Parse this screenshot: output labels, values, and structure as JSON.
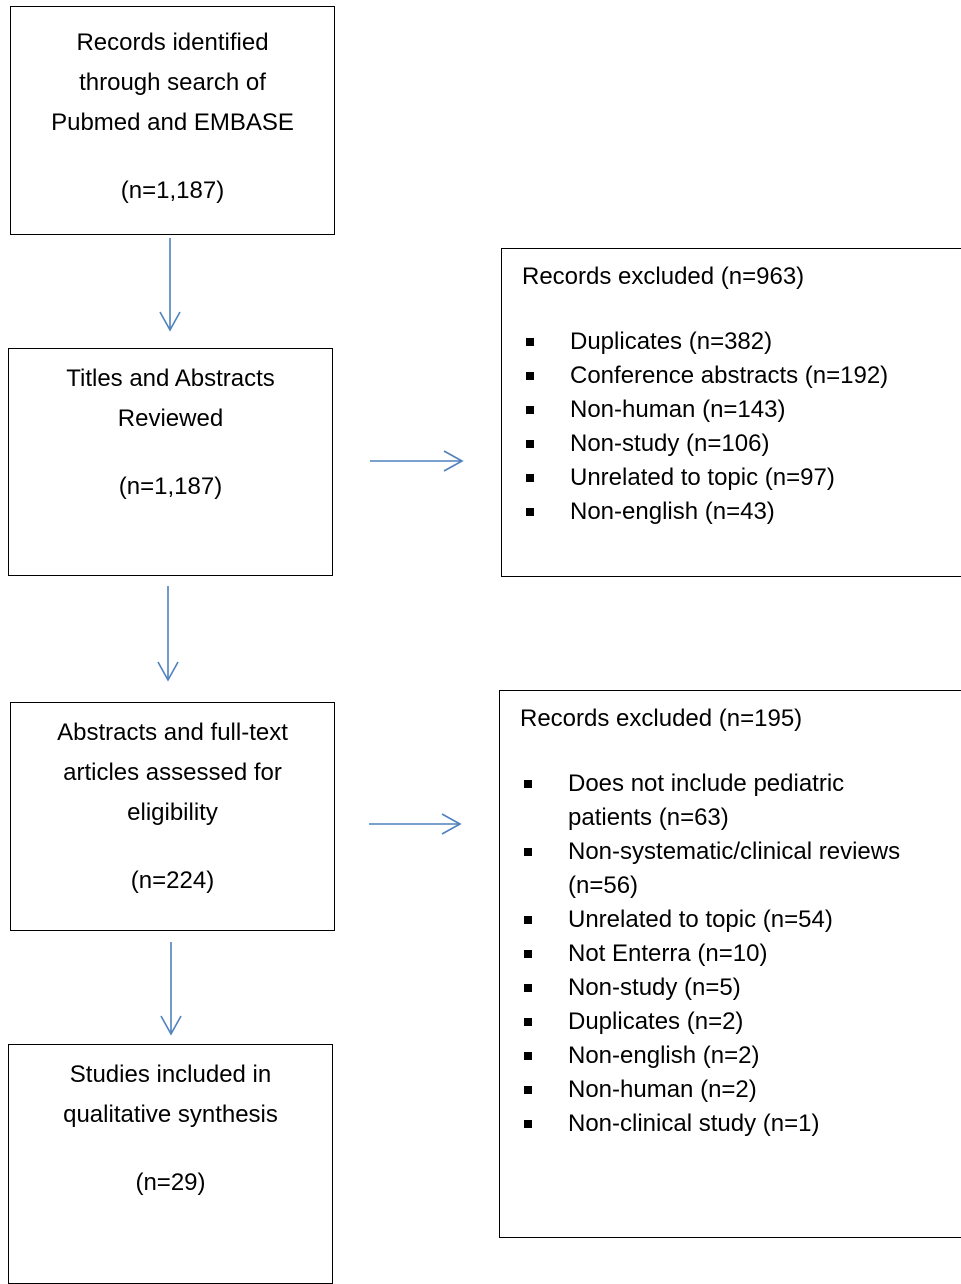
{
  "boxes": {
    "records_identified": {
      "lines": [
        "Records identified",
        "through search of",
        "Pubmed and EMBASE"
      ],
      "count": "(n=1,187)"
    },
    "titles_reviewed": {
      "lines": [
        "Titles and Abstracts",
        "Reviewed"
      ],
      "count": "(n=1,187)"
    },
    "fulltext_assessed": {
      "lines": [
        "Abstracts and full-text",
        "articles assessed for",
        "eligibility"
      ],
      "count": "(n=224)"
    },
    "studies_included": {
      "lines": [
        "Studies included in",
        "qualitative synthesis"
      ],
      "count": "(n=29)"
    }
  },
  "exclusions": {
    "first": {
      "title": "Records excluded (n=963)",
      "items": [
        [
          "Duplicates (n=382)"
        ],
        [
          "Conference abstracts (n=192)"
        ],
        [
          "Non-human (n=143)"
        ],
        [
          "Non-study (n=106)"
        ],
        [
          "Unrelated to topic (n=97)"
        ],
        [
          "Non-english (n=43)"
        ]
      ]
    },
    "second": {
      "title": "Records excluded (n=195)",
      "items": [
        [
          "Does not include pediatric",
          "patients (n=63)"
        ],
        [
          "Non-systematic/clinical reviews",
          "(n=56)"
        ],
        [
          "Unrelated to topic (n=54)"
        ],
        [
          "Not Enterra (n=10)"
        ],
        [
          "Non-study (n=5)"
        ],
        [
          "Duplicates (n=2)"
        ],
        [
          "Non-english (n=2)"
        ],
        [
          "Non-human (n=2)"
        ],
        [
          "Non-clinical study (n=1)"
        ]
      ]
    }
  },
  "colors": {
    "arrow": "#4f81bd",
    "border": "#000000"
  }
}
